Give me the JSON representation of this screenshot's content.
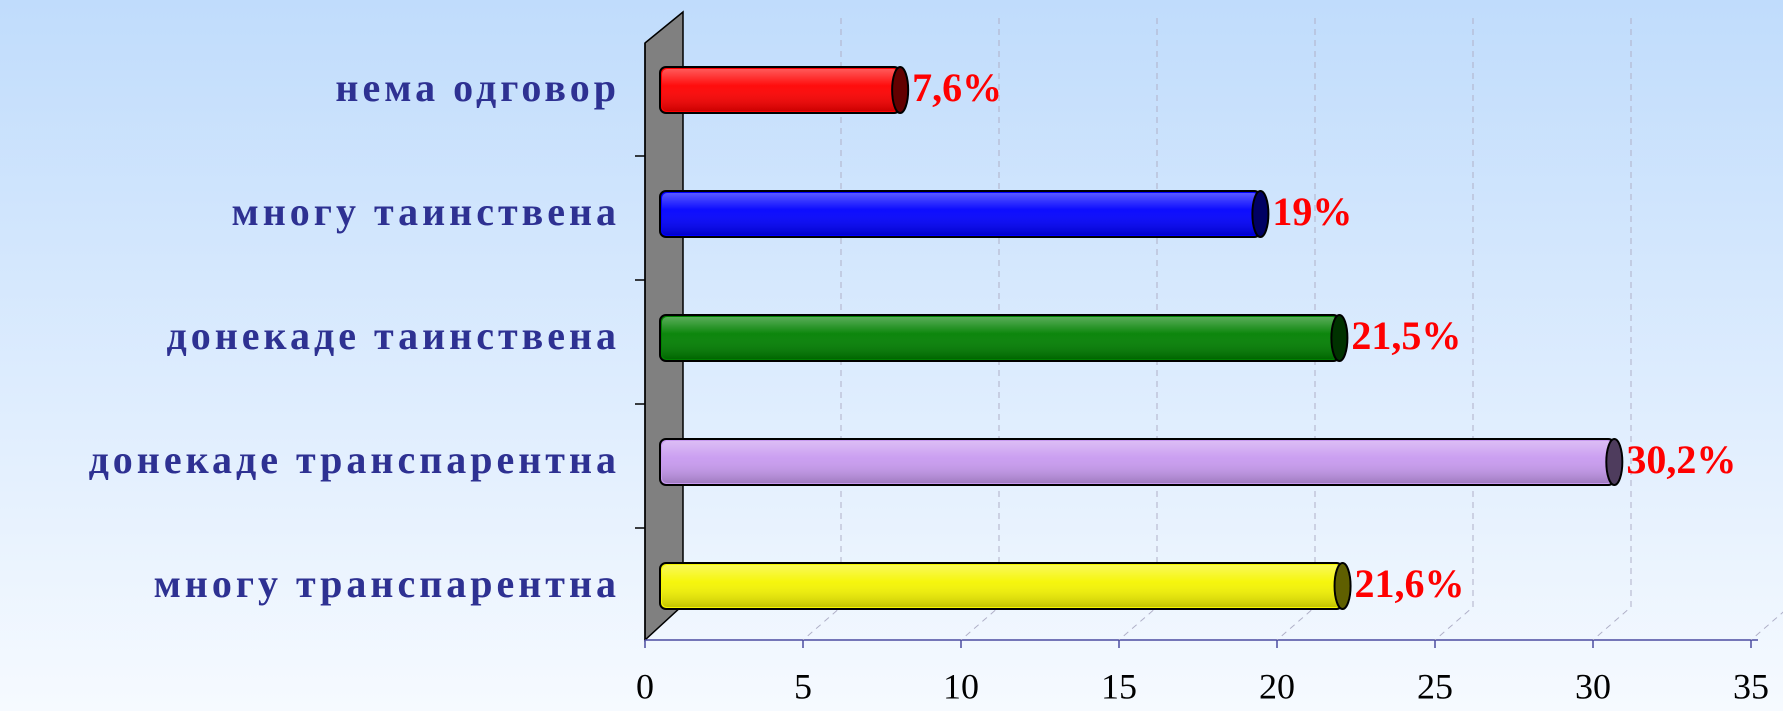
{
  "chart_data": {
    "type": "bar",
    "orientation": "horizontal",
    "categories": [
      "нема одговор",
      "многу таинствена",
      "донекаде таинствена",
      "донекаде транспарентна",
      "многу транспарентна"
    ],
    "values": [
      7.6,
      19,
      21.5,
      30.2,
      21.6
    ],
    "value_labels": [
      "7,6%",
      "19%",
      "21,5%",
      "30,2%",
      "21,6%"
    ],
    "colors": [
      "#ff0000",
      "#0000ff",
      "#008000",
      "#c89af0",
      "#f5f500"
    ],
    "xlim": [
      0,
      35
    ],
    "xticks": [
      0,
      5,
      10,
      15,
      20,
      25,
      30,
      35
    ],
    "grid": true
  }
}
